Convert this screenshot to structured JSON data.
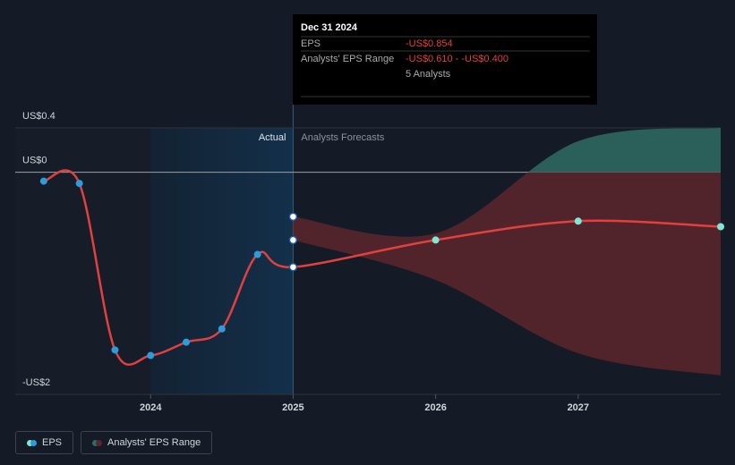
{
  "chart_data": {
    "type": "line",
    "xlim": [
      2023.05,
      2028.0
    ],
    "xticks": [
      2024,
      2025,
      2026,
      2027
    ],
    "ylim": [
      -2,
      0.4
    ],
    "yticks": [
      {
        "value": 0.4,
        "label": "US$0.4"
      },
      {
        "value": 0,
        "label": "US$0"
      },
      {
        "value": -2,
        "label": "-US$2"
      }
    ],
    "divider_x": 2025,
    "region_labels": [
      "Actual",
      "Analysts Forecasts"
    ],
    "series": [
      {
        "name": "EPS",
        "color": "#e0413f",
        "point_color": "#2d9cdb",
        "forecast_point_color": "#7ee8d4",
        "x": [
          2023.25,
          2023.5,
          2023.75,
          2024.0,
          2024.25,
          2024.5,
          2024.75,
          2025.0,
          2026.0,
          2027.0,
          2028.0
        ],
        "values": [
          -0.08,
          -0.1,
          -1.6,
          -1.65,
          -1.53,
          -1.41,
          -0.74,
          -0.854,
          -0.61,
          -0.44,
          -0.49
        ]
      }
    ],
    "range": {
      "name": "Analysts' EPS Range",
      "color_above": "#2e6b64",
      "color_below": "#5a262b",
      "x": [
        2025.0,
        2026.0,
        2027.0,
        2028.0
      ],
      "high": [
        -0.4,
        -0.55,
        0.28,
        0.4
      ],
      "low": [
        -0.61,
        -0.97,
        -1.63,
        -1.83
      ]
    },
    "tooltip": {
      "date": "Dec 31 2024",
      "rows": [
        [
          "EPS",
          "-US$0.854"
        ],
        [
          "Analysts' EPS Range",
          "-US$0.610 - -US$0.400"
        ],
        [
          "",
          "5 Analysts"
        ]
      ]
    }
  }
}
